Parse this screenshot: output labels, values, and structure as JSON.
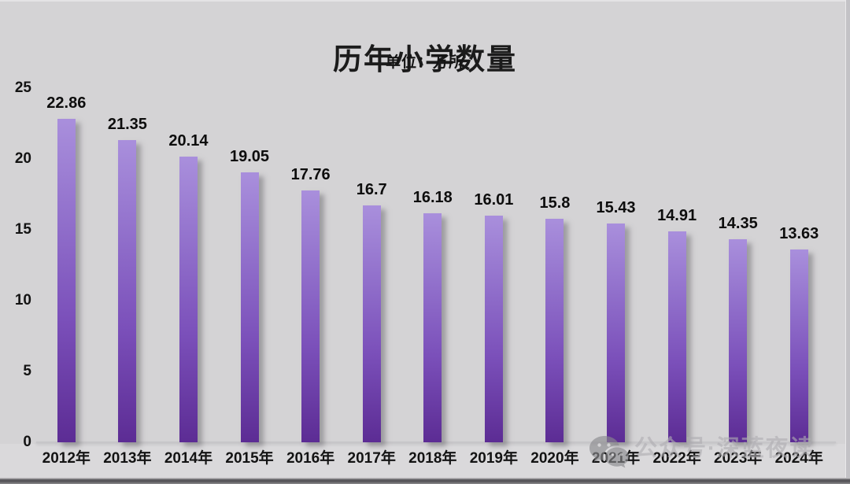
{
  "watermark": {
    "text": "公众号·深蓝夜读",
    "icon": "wechat-icon"
  },
  "chart_data": {
    "type": "bar",
    "title": "历年小学数量",
    "subtitle": "单位：万所",
    "categories": [
      "2012年",
      "2013年",
      "2014年",
      "2015年",
      "2016年",
      "2017年",
      "2018年",
      "2019年",
      "2020年",
      "2021年",
      "2022年",
      "2023年",
      "2024年"
    ],
    "values": [
      22.86,
      21.35,
      20.14,
      19.05,
      17.76,
      16.7,
      16.18,
      16.01,
      15.8,
      15.43,
      14.91,
      14.35,
      13.63
    ],
    "value_labels": [
      "22.86",
      "21.35",
      "20.14",
      "19.05",
      "17.76",
      "16.7",
      "16.18",
      "16.01",
      "15.8",
      "15.43",
      "14.91",
      "14.35",
      "13.63"
    ],
    "xlabel": "",
    "ylabel": "",
    "ylim": [
      0,
      25
    ],
    "yticks": [
      0,
      5,
      10,
      15,
      20,
      25
    ],
    "grid": false,
    "legend_position": "none",
    "bar_color_top": "#a98fdc",
    "bar_color_bottom": "#5c2c94",
    "background_color": "#d4d3d5",
    "label_color": "#0d0d0d"
  }
}
